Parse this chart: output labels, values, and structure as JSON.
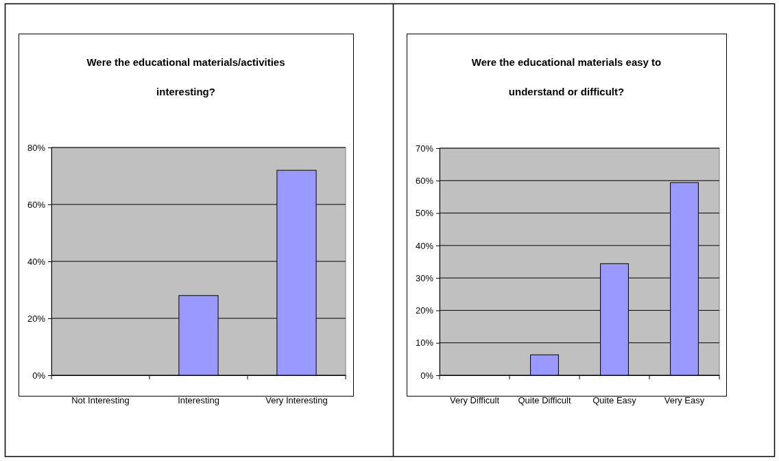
{
  "chart_data": [
    {
      "type": "bar",
      "title": "Were the educational materials/activities interesting?",
      "categories": [
        "Not Interesting",
        "Interesting",
        "Very Interesting"
      ],
      "values": [
        0,
        28,
        72
      ],
      "color": "#9999ff",
      "ylim": [
        0,
        80
      ],
      "yticks": [
        {
          "value": 0,
          "label": "0%"
        },
        {
          "value": 20,
          "label": "20%"
        },
        {
          "value": 40,
          "label": "40%"
        },
        {
          "value": 60,
          "label": "60%"
        },
        {
          "value": 80,
          "label": "80%"
        }
      ],
      "grid": "y"
    },
    {
      "type": "bar",
      "title": "Were the educational materials easy to understand or difficult?",
      "categories": [
        "Very Difficult",
        "Quite Difficult",
        "Quite Easy",
        "Very Easy"
      ],
      "values": [
        0,
        6.3,
        34.4,
        59.4
      ],
      "color": "#9999ff",
      "ylim": [
        0,
        70
      ],
      "yticks": [
        {
          "value": 0,
          "label": "0%"
        },
        {
          "value": 10,
          "label": "10%"
        },
        {
          "value": 20,
          "label": "20%"
        },
        {
          "value": 30,
          "label": "30%"
        },
        {
          "value": 40,
          "label": "40%"
        },
        {
          "value": 50,
          "label": "50%"
        },
        {
          "value": 60,
          "label": "60%"
        },
        {
          "value": 70,
          "label": "70%"
        }
      ],
      "grid": "y"
    }
  ]
}
